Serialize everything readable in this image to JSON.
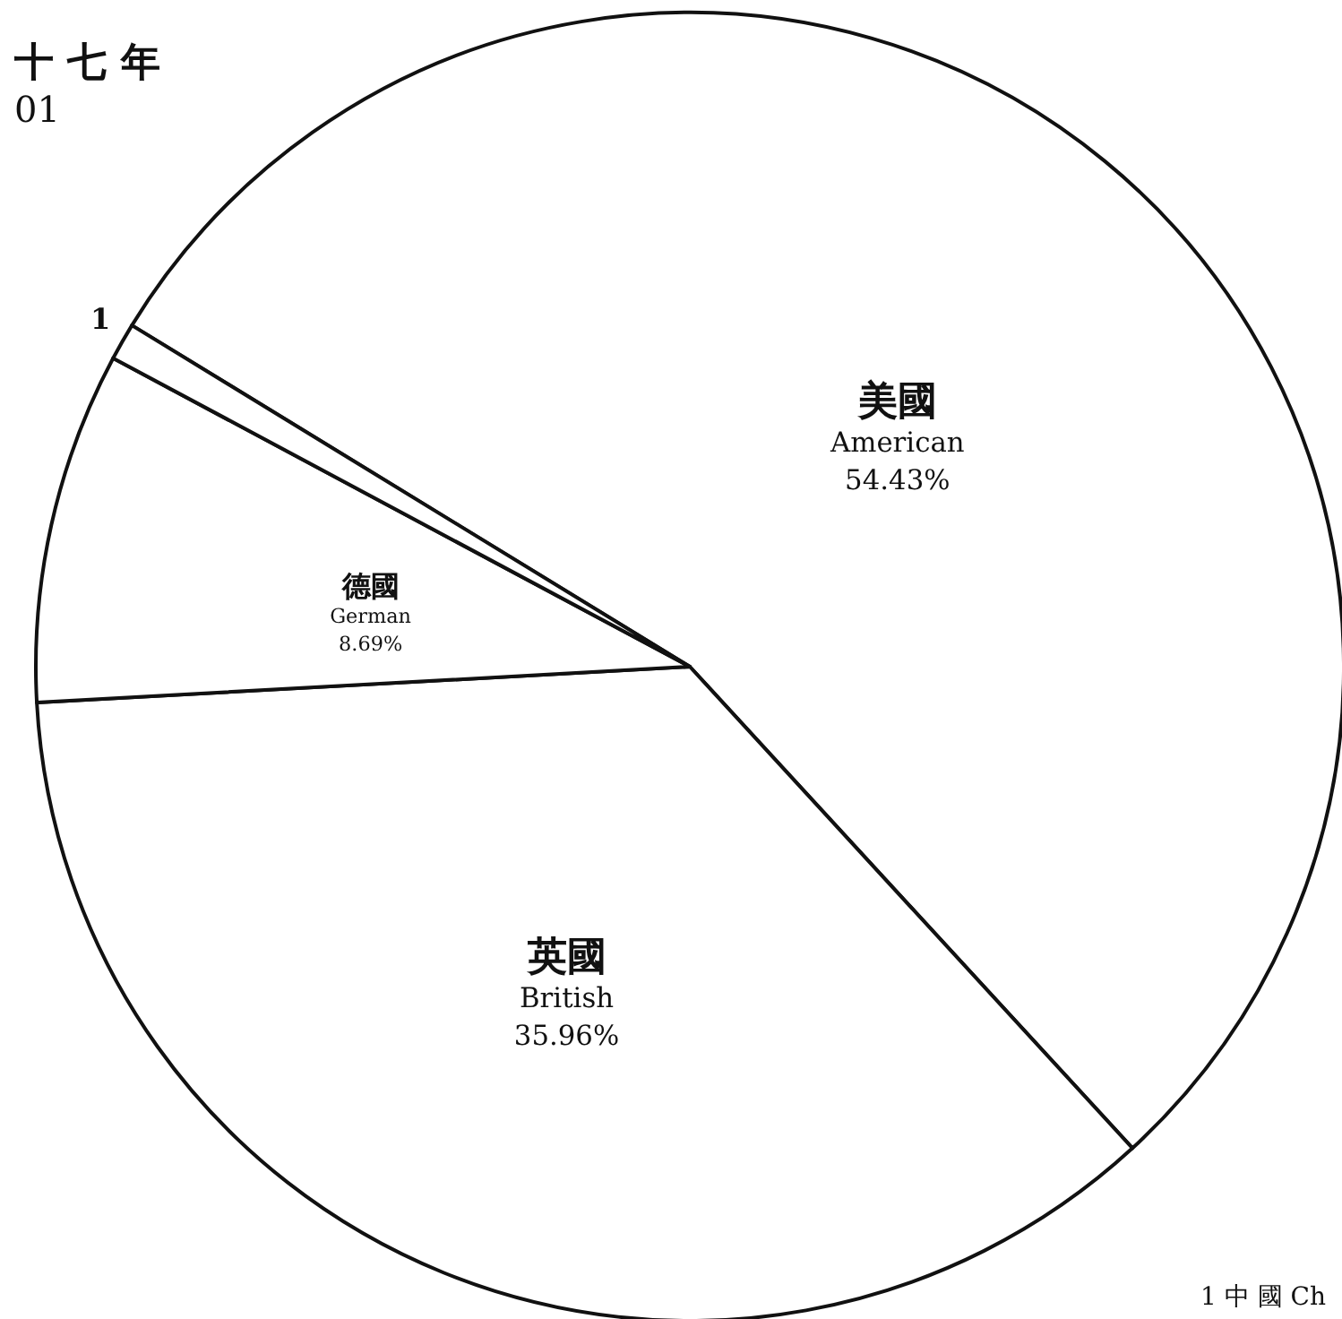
{
  "chart_data": {
    "type": "pie",
    "title": "十 七 年",
    "subtitle": "01",
    "categories": [
      "美國 American",
      "英國 British",
      "德國 German",
      "1"
    ],
    "values": [
      54.43,
      35.96,
      8.69,
      0.92
    ],
    "value_labels": [
      "54.43%",
      "35.96%",
      "8.69%",
      null
    ],
    "colors": [
      "#ffffff",
      "#ffffff",
      "#ffffff",
      "#ffffff"
    ],
    "annotations": [
      "1 中 國 Ch"
    ]
  }
}
